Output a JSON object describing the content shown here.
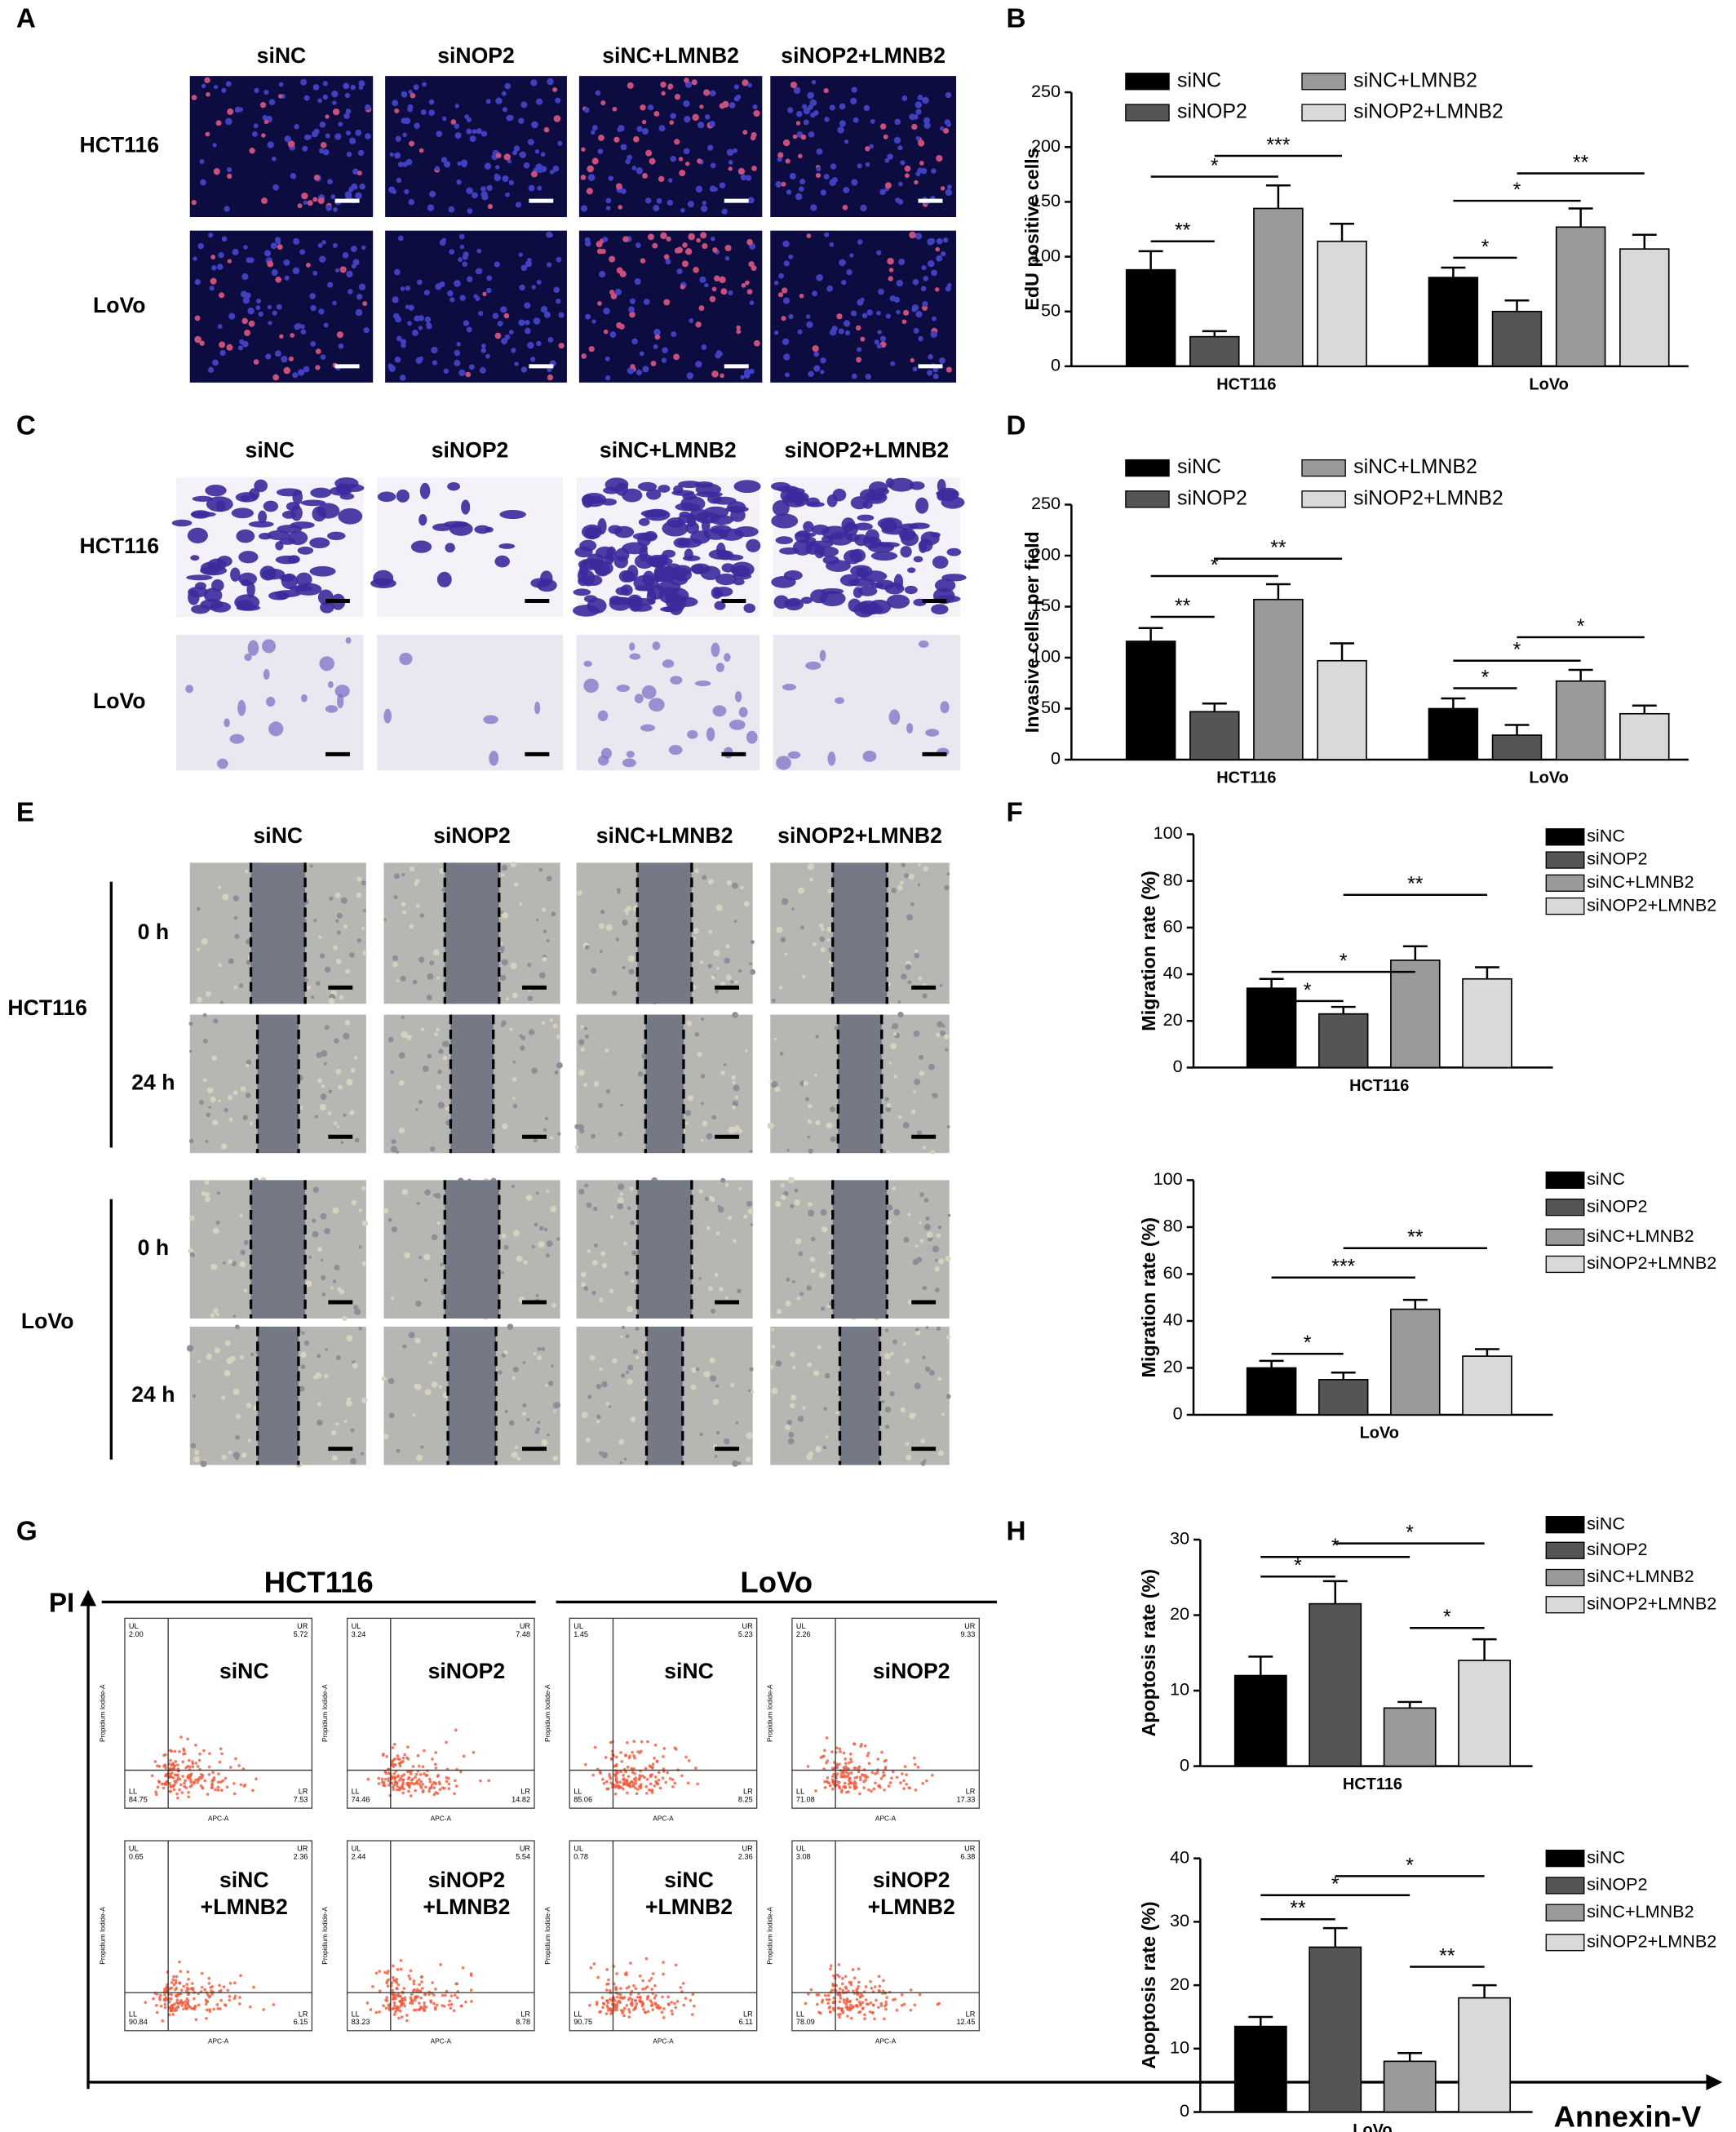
{
  "panel_labels": [
    "A",
    "B",
    "C",
    "D",
    "E",
    "F",
    "G",
    "H"
  ],
  "panel_a": {
    "columns": [
      "siNC",
      "siNOP2",
      "siNC+LMNB2",
      "siNOP2+LMNB2"
    ],
    "rows": [
      "HCT116",
      "LoVo"
    ]
  },
  "panel_c": {
    "columns": [
      "siNC",
      "siNOP2",
      "siNC+LMNB2",
      "siNOP2+LMNB2"
    ],
    "rows": [
      "HCT116",
      "LoVo"
    ]
  },
  "panel_e": {
    "columns": [
      "siNC",
      "siNOP2",
      "siNC+LMNB2",
      "siNOP2+LMNB2"
    ],
    "groups": [
      {
        "name": "HCT116",
        "rows": [
          "0 h",
          "24 h"
        ]
      },
      {
        "name": "LoVo",
        "rows": [
          "0 h",
          "24 h"
        ]
      }
    ]
  },
  "panel_g": {
    "y_axis": "PI",
    "x_axis": "Annexin-V",
    "groups": [
      "HCT116",
      "LoVo"
    ],
    "plot_y_label": "Propidium Iodide-A",
    "plot_x_label": "APC-A",
    "quadrant_names": [
      "UL",
      "UR",
      "LL",
      "LR"
    ],
    "plots": [
      {
        "label": [
          "siNC"
        ],
        "quadrants": [
          "2.00",
          "5.72",
          "84.75",
          "7.53"
        ]
      },
      {
        "label": [
          "siNOP2"
        ],
        "quadrants": [
          "3.24",
          "7.48",
          "74.46",
          "14.82"
        ]
      },
      {
        "label": [
          "siNC"
        ],
        "quadrants": [
          "1.45",
          "5.23",
          "85.06",
          "8.25"
        ]
      },
      {
        "label": [
          "siNOP2"
        ],
        "quadrants": [
          "2.26",
          "9.33",
          "71.08",
          "17.33"
        ]
      },
      {
        "label": [
          "siNC",
          "+LMNB2"
        ],
        "quadrants": [
          "0.65",
          "2.36",
          "90.84",
          "6.15"
        ]
      },
      {
        "label": [
          "siNOP2",
          "+LMNB2"
        ],
        "quadrants": [
          "2.44",
          "5.54",
          "83.23",
          "8.78"
        ]
      },
      {
        "label": [
          "siNC",
          "+LMNB2"
        ],
        "quadrants": [
          "0.78",
          "2.36",
          "90.75",
          "6.11"
        ]
      },
      {
        "label": [
          "siNOP2",
          "+LMNB2"
        ],
        "quadrants": [
          "3.08",
          "6.38",
          "78.09",
          "12.45"
        ]
      }
    ]
  },
  "chart_data": [
    {
      "type": "bar",
      "y_label": "EdU positive cells",
      "categories": [
        "HCT116",
        "LoVo"
      ],
      "ylim": [
        0,
        250
      ],
      "yticks": [
        0,
        50,
        100,
        150,
        200,
        250
      ],
      "legend": "top",
      "series": [
        {
          "name": "siNC",
          "color": "#000000",
          "values": [
            88,
            81
          ],
          "errors": [
            17,
            9
          ]
        },
        {
          "name": "siNOP2",
          "color": "#555555",
          "values": [
            27,
            50
          ],
          "errors": [
            5,
            10
          ]
        },
        {
          "name": "siNC+LMNB2",
          "color": "#9a9a9a",
          "values": [
            144,
            127
          ],
          "errors": [
            21,
            17
          ]
        },
        {
          "name": "siNOP2+LMNB2",
          "color": "#d9d9d9",
          "values": [
            114,
            107
          ],
          "errors": [
            16,
            13
          ]
        }
      ],
      "annotations": [
        [
          "**",
          "*",
          "***"
        ],
        [
          "*",
          "*",
          "**"
        ]
      ]
    },
    {
      "type": "bar",
      "y_label": "Invasive cells per field",
      "categories": [
        "HCT116",
        "LoVo"
      ],
      "ylim": [
        0,
        250
      ],
      "yticks": [
        0,
        50,
        100,
        150,
        200,
        250
      ],
      "legend": "top",
      "series": [
        {
          "name": "siNC",
          "color": "#000000",
          "values": [
            116,
            50
          ],
          "errors": [
            13,
            10
          ]
        },
        {
          "name": "siNOP2",
          "color": "#555555",
          "values": [
            47,
            24
          ],
          "errors": [
            8,
            10
          ]
        },
        {
          "name": "siNC+LMNB2",
          "color": "#9a9a9a",
          "values": [
            157,
            77
          ],
          "errors": [
            15,
            11
          ]
        },
        {
          "name": "siNOP2+LMNB2",
          "color": "#d9d9d9",
          "values": [
            97,
            45
          ],
          "errors": [
            17,
            8
          ]
        }
      ],
      "annotations": [
        [
          "**",
          "*",
          "**"
        ],
        [
          "*",
          "*",
          "*"
        ]
      ]
    },
    {
      "type": "bar",
      "y_label": "Migration rate (%)",
      "categories": [
        "HCT116"
      ],
      "ylim": [
        0,
        100
      ],
      "yticks": [
        0,
        20,
        40,
        60,
        80,
        100
      ],
      "legend": "right",
      "series": [
        {
          "name": "siNC",
          "color": "#000000",
          "values": [
            34
          ],
          "errors": [
            4
          ]
        },
        {
          "name": "siNOP2",
          "color": "#555555",
          "values": [
            23
          ],
          "errors": [
            3
          ]
        },
        {
          "name": "siNC+LMNB2",
          "color": "#9a9a9a",
          "values": [
            46
          ],
          "errors": [
            6
          ]
        },
        {
          "name": "siNOP2+LMNB2",
          "color": "#d9d9d9",
          "values": [
            38
          ],
          "errors": [
            5
          ]
        }
      ],
      "annotations": [
        [
          "*",
          "*",
          "**"
        ]
      ]
    },
    {
      "type": "bar",
      "y_label": "Migration rate (%)",
      "categories": [
        "LoVo"
      ],
      "ylim": [
        0,
        100
      ],
      "yticks": [
        0,
        20,
        40,
        60,
        80,
        100
      ],
      "legend": "right",
      "series": [
        {
          "name": "siNC",
          "color": "#000000",
          "values": [
            20
          ],
          "errors": [
            3
          ]
        },
        {
          "name": "siNOP2",
          "color": "#555555",
          "values": [
            15
          ],
          "errors": [
            3
          ]
        },
        {
          "name": "siNC+LMNB2",
          "color": "#9a9a9a",
          "values": [
            45
          ],
          "errors": [
            4
          ]
        },
        {
          "name": "siNOP2+LMNB2",
          "color": "#d9d9d9",
          "values": [
            25
          ],
          "errors": [
            3
          ]
        }
      ],
      "annotations": [
        [
          "*",
          "***",
          "**"
        ]
      ]
    },
    {
      "type": "bar",
      "y_label": "Apoptosis rate (%)",
      "categories": [
        "HCT116"
      ],
      "ylim": [
        0,
        30
      ],
      "yticks": [
        0,
        10,
        20,
        30
      ],
      "legend": "right",
      "series": [
        {
          "name": "siNC",
          "color": "#000000",
          "values": [
            12
          ],
          "errors": [
            2.5
          ]
        },
        {
          "name": "siNOP2",
          "color": "#555555",
          "values": [
            21.5
          ],
          "errors": [
            3
          ]
        },
        {
          "name": "siNC+LMNB2",
          "color": "#9a9a9a",
          "values": [
            7.7
          ],
          "errors": [
            0.8
          ]
        },
        {
          "name": "siNOP2+LMNB2",
          "color": "#d9d9d9",
          "values": [
            14
          ],
          "errors": [
            2.8
          ]
        }
      ],
      "annotations": [
        [
          "*",
          "*",
          "*",
          "*"
        ]
      ]
    },
    {
      "type": "bar",
      "y_label": "Apoptosis rate (%)",
      "categories": [
        "LoVo"
      ],
      "ylim": [
        0,
        40
      ],
      "yticks": [
        0,
        10,
        20,
        30,
        40
      ],
      "legend": "right",
      "series": [
        {
          "name": "siNC",
          "color": "#000000",
          "values": [
            13.5
          ],
          "errors": [
            1.5
          ]
        },
        {
          "name": "siNOP2",
          "color": "#555555",
          "values": [
            26
          ],
          "errors": [
            3
          ]
        },
        {
          "name": "siNC+LMNB2",
          "color": "#9a9a9a",
          "values": [
            8
          ],
          "errors": [
            1.3
          ]
        },
        {
          "name": "siNOP2+LMNB2",
          "color": "#d9d9d9",
          "values": [
            18
          ],
          "errors": [
            2
          ]
        }
      ],
      "annotations": [
        [
          "**",
          "*",
          "*",
          "**"
        ]
      ]
    }
  ]
}
